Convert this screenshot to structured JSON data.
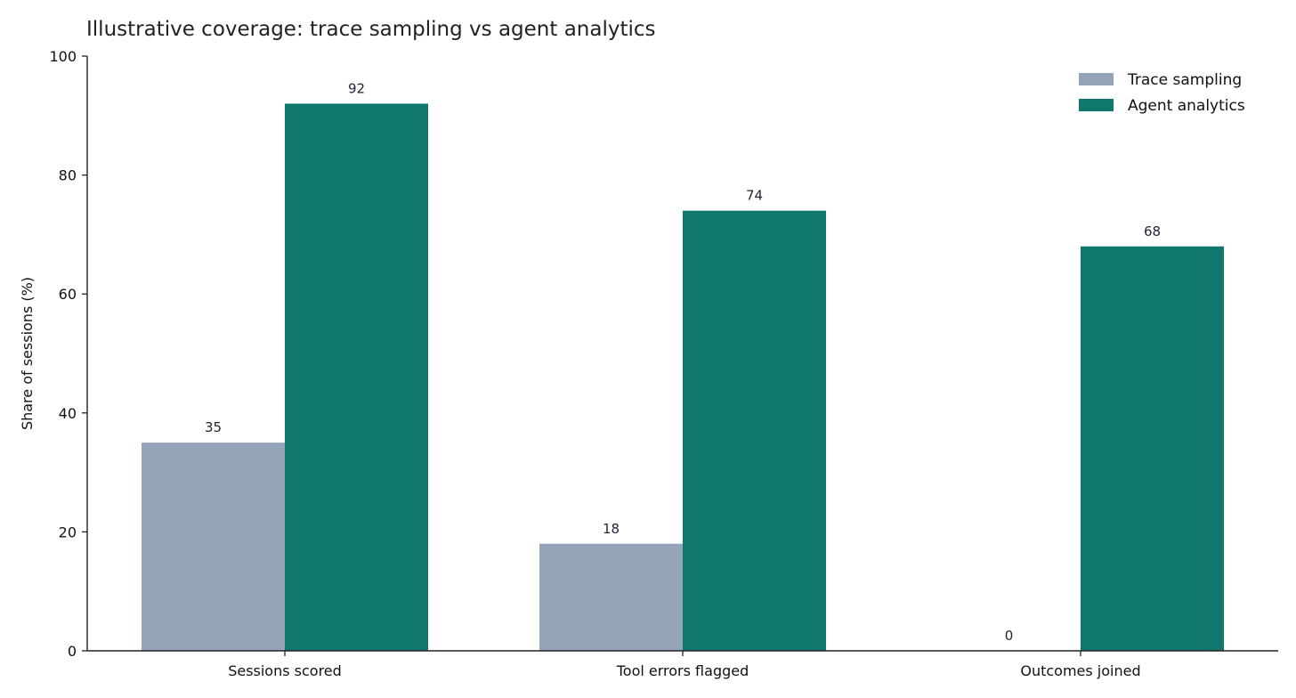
{
  "chart_data": {
    "type": "bar",
    "title": "Illustrative coverage: trace sampling vs agent analytics",
    "xlabel": "",
    "ylabel": "Share of sessions (%)",
    "ylim": [
      0,
      100
    ],
    "yticks": [
      0,
      20,
      40,
      60,
      80,
      100
    ],
    "categories": [
      "Sessions scored",
      "Tool errors flagged",
      "Outcomes joined"
    ],
    "series": [
      {
        "name": "Trace sampling",
        "values": [
          35,
          18,
          0
        ],
        "color": "#95a3b8"
      },
      {
        "name": "Agent analytics",
        "values": [
          92,
          74,
          68
        ],
        "color": "#10776f"
      }
    ],
    "data_labels": true,
    "grid": false,
    "legend": "top-right"
  }
}
